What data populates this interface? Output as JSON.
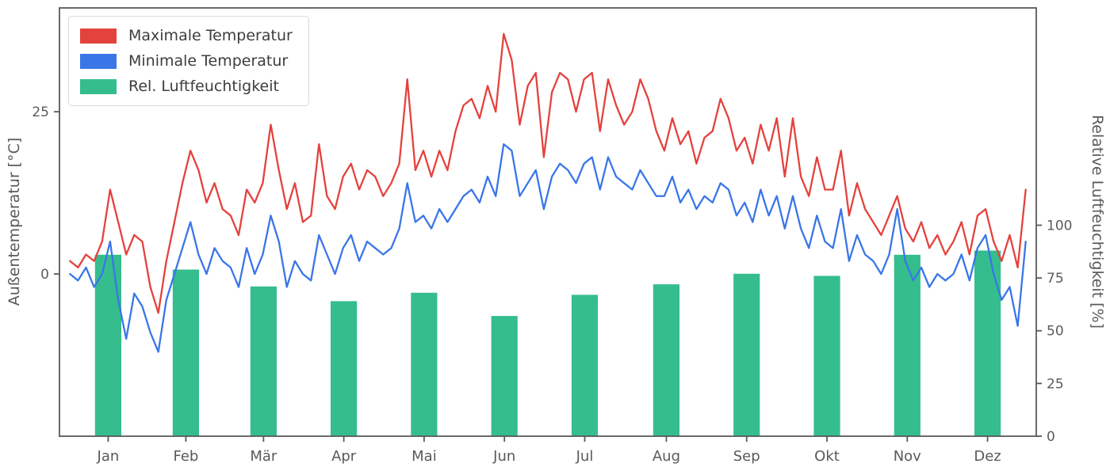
{
  "chart_data": {
    "type": "line+bar",
    "title": "",
    "x_axis": {
      "tick_labels": [
        "Jan",
        "Feb",
        "Mär",
        "Apr",
        "Mai",
        "Jun",
        "Jul",
        "Aug",
        "Sep",
        "Okt",
        "Nov",
        "Dez"
      ],
      "range_days": [
        -3,
        368
      ],
      "month_lengths": [
        31,
        28,
        31,
        30,
        31,
        30,
        31,
        31,
        30,
        31,
        30,
        31
      ]
    },
    "left_axis": {
      "label": "Außentemperatur [°C]",
      "ticks": [
        0,
        25
      ],
      "range": [
        -25,
        41
      ],
      "unit": "°C"
    },
    "right_axis": {
      "label": "Relative Luftfeuchtigkeit [%]",
      "ticks": [
        0,
        25,
        50,
        75,
        100
      ],
      "range": [
        0,
        203
      ],
      "unit": "%"
    },
    "legend": [
      {
        "label": "Maximale Temperatur",
        "color": "#e4423d"
      },
      {
        "label": "Minimale Temperatur",
        "color": "#3a76e8"
      },
      {
        "label": "Rel. Luftfeuchtigkeit",
        "color": "#35bd8d"
      }
    ],
    "series": [
      {
        "name": "Maximale Temperatur",
        "data_name": "max-temp-line",
        "type": "line",
        "axis": "left",
        "color": "#e4423d",
        "x_start_day": 1,
        "x_end_day": 364,
        "values": [
          2,
          1,
          3,
          2,
          5,
          13,
          8,
          3,
          6,
          5,
          -2,
          -6,
          2,
          8,
          14,
          19,
          16,
          11,
          14,
          10,
          9,
          6,
          13,
          11,
          14,
          23,
          16,
          10,
          14,
          8,
          9,
          20,
          12,
          10,
          15,
          17,
          13,
          16,
          15,
          12,
          14,
          17,
          30,
          16,
          19,
          15,
          19,
          16,
          22,
          26,
          27,
          24,
          29,
          25,
          37,
          33,
          23,
          29,
          31,
          18,
          28,
          31,
          30,
          25,
          30,
          31,
          22,
          30,
          26,
          23,
          25,
          30,
          27,
          22,
          19,
          24,
          20,
          22,
          17,
          21,
          22,
          27,
          24,
          19,
          21,
          17,
          23,
          19,
          24,
          15,
          24,
          15,
          12,
          18,
          13,
          13,
          19,
          9,
          14,
          10,
          8,
          6,
          9,
          12,
          7,
          5,
          8,
          4,
          6,
          3,
          5,
          8,
          3,
          9,
          10,
          5,
          2,
          6,
          1,
          13
        ]
      },
      {
        "name": "Minimale Temperatur",
        "data_name": "min-temp-line",
        "type": "line",
        "axis": "left",
        "color": "#3a76e8",
        "x_start_day": 1,
        "x_end_day": 364,
        "values": [
          0,
          -1,
          1,
          -2,
          0,
          5,
          -4,
          -10,
          -3,
          -5,
          -9,
          -12,
          -4,
          0,
          4,
          8,
          3,
          0,
          4,
          2,
          1,
          -2,
          4,
          0,
          3,
          9,
          5,
          -2,
          2,
          0,
          -1,
          6,
          3,
          0,
          4,
          6,
          2,
          5,
          4,
          3,
          4,
          7,
          14,
          8,
          9,
          7,
          10,
          8,
          10,
          12,
          13,
          11,
          15,
          12,
          20,
          19,
          12,
          14,
          16,
          10,
          15,
          17,
          16,
          14,
          17,
          18,
          13,
          18,
          15,
          14,
          13,
          16,
          14,
          12,
          12,
          15,
          11,
          13,
          10,
          12,
          11,
          14,
          13,
          9,
          11,
          8,
          13,
          9,
          12,
          7,
          12,
          7,
          4,
          9,
          5,
          4,
          10,
          2,
          6,
          3,
          2,
          0,
          3,
          10,
          2,
          -1,
          1,
          -2,
          0,
          -1,
          0,
          3,
          -1,
          4,
          6,
          0,
          -4,
          -2,
          -8,
          5
        ]
      }
    ],
    "bars": {
      "name": "Rel. Luftfeuchtigkeit",
      "data_name": "humidity-bars",
      "type": "bar",
      "axis": "right",
      "color": "#35bd8d",
      "bar_width_days": 10,
      "categories": [
        "Jan",
        "Feb",
        "Mär",
        "Apr",
        "Mai",
        "Jun",
        "Jul",
        "Aug",
        "Sep",
        "Okt",
        "Nov",
        "Dez"
      ],
      "values": [
        86,
        79,
        71,
        64,
        68,
        57,
        67,
        72,
        77,
        76,
        86,
        88
      ]
    }
  }
}
